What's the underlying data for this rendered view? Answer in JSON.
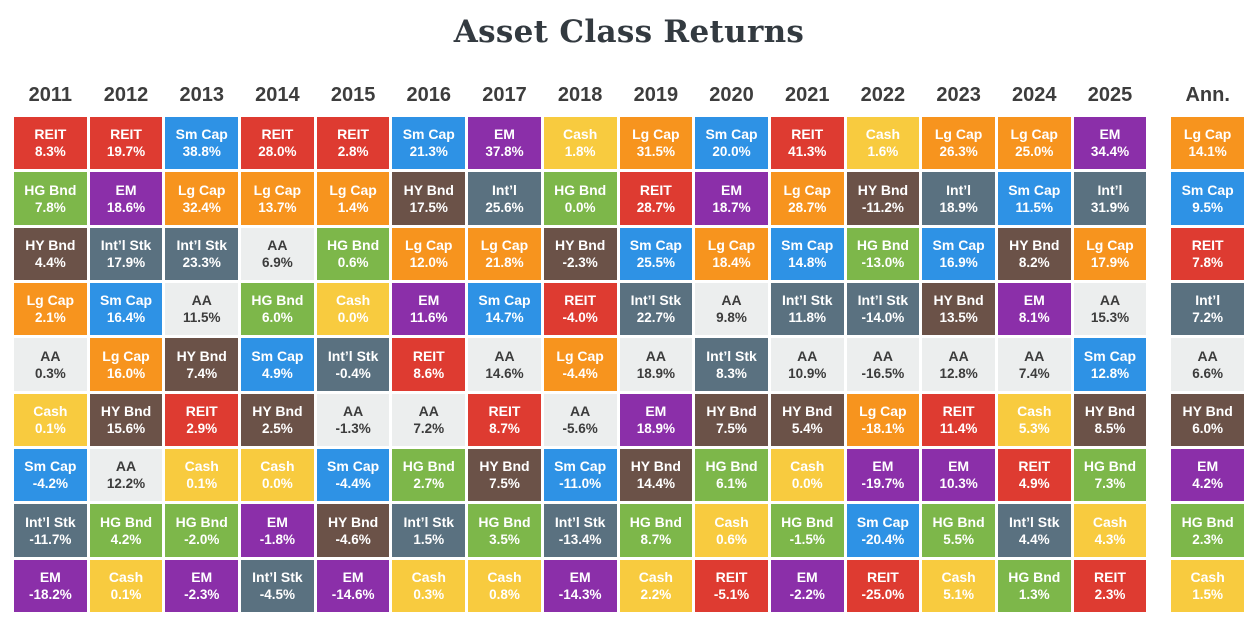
{
  "chart_data": {
    "type": "table",
    "title": "Asset Class Returns",
    "legend_position": "none",
    "asset_classes": [
      "Lg Cap",
      "Sm Cap",
      "Int’l Stk",
      "EM",
      "REIT",
      "HG Bnd",
      "HY Bnd",
      "Cash",
      "AA"
    ],
    "asset_styles": {
      "REIT": {
        "bg": "#DE3B31",
        "fg": "#FFFFFF"
      },
      "Lg Cap": {
        "bg": "#F7941E",
        "fg": "#FFFFFF"
      },
      "Sm Cap": {
        "bg": "#2E92E5",
        "fg": "#FFFFFF"
      },
      "Int’l Stk": {
        "bg": "#5A7180",
        "fg": "#FFFFFF"
      },
      "Int’l": {
        "bg": "#5A7180",
        "fg": "#FFFFFF"
      },
      "EM": {
        "bg": "#8B2FA9",
        "fg": "#FFFFFF"
      },
      "HG Bnd": {
        "bg": "#7DB74A",
        "fg": "#FFFFFF"
      },
      "HY Bnd": {
        "bg": "#6B5248",
        "fg": "#FFFFFF"
      },
      "Cash": {
        "bg": "#F8CB3F",
        "fg": "#FFFFFF"
      },
      "AA": {
        "bg": "#ECEEEE",
        "fg": "#3C3C3C"
      }
    },
    "columns": [
      {
        "label": "2011",
        "cells": [
          {
            "asset": "REIT",
            "value": "8.3%"
          },
          {
            "asset": "HG Bnd",
            "value": "7.8%"
          },
          {
            "asset": "HY Bnd",
            "value": "4.4%"
          },
          {
            "asset": "Lg Cap",
            "value": "2.1%"
          },
          {
            "asset": "AA",
            "value": "0.3%"
          },
          {
            "asset": "Cash",
            "value": "0.1%"
          },
          {
            "asset": "Sm Cap",
            "value": "-4.2%"
          },
          {
            "asset": "Int’l Stk",
            "value": "-11.7%"
          },
          {
            "asset": "EM",
            "value": "-18.2%"
          }
        ]
      },
      {
        "label": "2012",
        "cells": [
          {
            "asset": "REIT",
            "value": "19.7%"
          },
          {
            "asset": "EM",
            "value": "18.6%"
          },
          {
            "asset": "Int’l Stk",
            "value": "17.9%"
          },
          {
            "asset": "Sm Cap",
            "value": "16.4%"
          },
          {
            "asset": "Lg Cap",
            "value": "16.0%"
          },
          {
            "asset": "HY Bnd",
            "value": "15.6%"
          },
          {
            "asset": "AA",
            "value": "12.2%"
          },
          {
            "asset": "HG Bnd",
            "value": "4.2%"
          },
          {
            "asset": "Cash",
            "value": "0.1%"
          }
        ]
      },
      {
        "label": "2013",
        "cells": [
          {
            "asset": "Sm Cap",
            "value": "38.8%"
          },
          {
            "asset": "Lg Cap",
            "value": "32.4%"
          },
          {
            "asset": "Int’l Stk",
            "value": "23.3%"
          },
          {
            "asset": "AA",
            "value": "11.5%"
          },
          {
            "asset": "HY Bnd",
            "value": "7.4%"
          },
          {
            "asset": "REIT",
            "value": "2.9%"
          },
          {
            "asset": "Cash",
            "value": "0.1%"
          },
          {
            "asset": "HG Bnd",
            "value": "-2.0%"
          },
          {
            "asset": "EM",
            "value": "-2.3%"
          }
        ]
      },
      {
        "label": "2014",
        "cells": [
          {
            "asset": "REIT",
            "value": "28.0%"
          },
          {
            "asset": "Lg Cap",
            "value": "13.7%"
          },
          {
            "asset": "AA",
            "value": "6.9%"
          },
          {
            "asset": "HG Bnd",
            "value": "6.0%"
          },
          {
            "asset": "Sm Cap",
            "value": "4.9%"
          },
          {
            "asset": "HY Bnd",
            "value": "2.5%"
          },
          {
            "asset": "Cash",
            "value": "0.0%"
          },
          {
            "asset": "EM",
            "value": "-1.8%"
          },
          {
            "asset": "Int’l Stk",
            "value": "-4.5%"
          }
        ]
      },
      {
        "label": "2015",
        "cells": [
          {
            "asset": "REIT",
            "value": "2.8%"
          },
          {
            "asset": "Lg Cap",
            "value": "1.4%"
          },
          {
            "asset": "HG Bnd",
            "value": "0.6%"
          },
          {
            "asset": "Cash",
            "value": "0.0%"
          },
          {
            "asset": "Int’l Stk",
            "value": "-0.4%"
          },
          {
            "asset": "AA",
            "value": "-1.3%"
          },
          {
            "asset": "Sm Cap",
            "value": "-4.4%"
          },
          {
            "asset": "HY Bnd",
            "value": "-4.6%"
          },
          {
            "asset": "EM",
            "value": "-14.6%"
          }
        ]
      },
      {
        "label": "2016",
        "cells": [
          {
            "asset": "Sm Cap",
            "value": "21.3%"
          },
          {
            "asset": "HY Bnd",
            "value": "17.5%"
          },
          {
            "asset": "Lg Cap",
            "value": "12.0%"
          },
          {
            "asset": "EM",
            "value": "11.6%"
          },
          {
            "asset": "REIT",
            "value": "8.6%"
          },
          {
            "asset": "AA",
            "value": "7.2%"
          },
          {
            "asset": "HG Bnd",
            "value": "2.7%"
          },
          {
            "asset": "Int’l Stk",
            "value": "1.5%"
          },
          {
            "asset": "Cash",
            "value": "0.3%"
          }
        ]
      },
      {
        "label": "2017",
        "cells": [
          {
            "asset": "EM",
            "value": "37.8%"
          },
          {
            "asset": "Int’l",
            "value": "25.6%"
          },
          {
            "asset": "Lg Cap",
            "value": "21.8%"
          },
          {
            "asset": "Sm Cap",
            "value": "14.7%"
          },
          {
            "asset": "AA",
            "value": "14.6%"
          },
          {
            "asset": "REIT",
            "value": "8.7%"
          },
          {
            "asset": "HY Bnd",
            "value": "7.5%"
          },
          {
            "asset": "HG Bnd",
            "value": "3.5%"
          },
          {
            "asset": "Cash",
            "value": "0.8%"
          }
        ]
      },
      {
        "label": "2018",
        "cells": [
          {
            "asset": "Cash",
            "value": "1.8%"
          },
          {
            "asset": "HG Bnd",
            "value": "0.0%"
          },
          {
            "asset": "HY Bnd",
            "value": "-2.3%"
          },
          {
            "asset": "REIT",
            "value": "-4.0%"
          },
          {
            "asset": "Lg Cap",
            "value": "-4.4%"
          },
          {
            "asset": "AA",
            "value": "-5.6%"
          },
          {
            "asset": "Sm Cap",
            "value": "-11.0%"
          },
          {
            "asset": "Int’l Stk",
            "value": "-13.4%"
          },
          {
            "asset": "EM",
            "value": "-14.3%"
          }
        ]
      },
      {
        "label": "2019",
        "cells": [
          {
            "asset": "Lg Cap",
            "value": "31.5%"
          },
          {
            "asset": "REIT",
            "value": "28.7%"
          },
          {
            "asset": "Sm Cap",
            "value": "25.5%"
          },
          {
            "asset": "Int’l Stk",
            "value": "22.7%"
          },
          {
            "asset": "AA",
            "value": "18.9%"
          },
          {
            "asset": "EM",
            "value": "18.9%"
          },
          {
            "asset": "HY Bnd",
            "value": "14.4%"
          },
          {
            "asset": "HG Bnd",
            "value": "8.7%"
          },
          {
            "asset": "Cash",
            "value": "2.2%"
          }
        ]
      },
      {
        "label": "2020",
        "cells": [
          {
            "asset": "Sm Cap",
            "value": "20.0%"
          },
          {
            "asset": "EM",
            "value": "18.7%"
          },
          {
            "asset": "Lg Cap",
            "value": "18.4%"
          },
          {
            "asset": "AA",
            "value": "9.8%"
          },
          {
            "asset": "Int’l Stk",
            "value": "8.3%"
          },
          {
            "asset": "HY Bnd",
            "value": "7.5%"
          },
          {
            "asset": "HG Bnd",
            "value": "6.1%"
          },
          {
            "asset": "Cash",
            "value": "0.6%"
          },
          {
            "asset": "REIT",
            "value": "-5.1%"
          }
        ]
      },
      {
        "label": "2021",
        "cells": [
          {
            "asset": "REIT",
            "value": "41.3%"
          },
          {
            "asset": "Lg Cap",
            "value": "28.7%"
          },
          {
            "asset": "Sm Cap",
            "value": "14.8%"
          },
          {
            "asset": "Int’l Stk",
            "value": "11.8%"
          },
          {
            "asset": "AA",
            "value": "10.9%"
          },
          {
            "asset": "HY Bnd",
            "value": "5.4%"
          },
          {
            "asset": "Cash",
            "value": "0.0%"
          },
          {
            "asset": "HG Bnd",
            "value": "-1.5%"
          },
          {
            "asset": "EM",
            "value": "-2.2%"
          }
        ]
      },
      {
        "label": "2022",
        "cells": [
          {
            "asset": "Cash",
            "value": "1.6%"
          },
          {
            "asset": "HY Bnd",
            "value": "-11.2%"
          },
          {
            "asset": "HG Bnd",
            "value": "-13.0%"
          },
          {
            "asset": "Int’l Stk",
            "value": "-14.0%"
          },
          {
            "asset": "AA",
            "value": "-16.5%"
          },
          {
            "asset": "Lg Cap",
            "value": "-18.1%"
          },
          {
            "asset": "EM",
            "value": "-19.7%"
          },
          {
            "asset": "Sm Cap",
            "value": "-20.4%"
          },
          {
            "asset": "REIT",
            "value": "-25.0%"
          }
        ]
      },
      {
        "label": "2023",
        "cells": [
          {
            "asset": "Lg Cap",
            "value": "26.3%"
          },
          {
            "asset": "Int’l",
            "value": "18.9%"
          },
          {
            "asset": "Sm Cap",
            "value": "16.9%"
          },
          {
            "asset": "HY Bnd",
            "value": "13.5%"
          },
          {
            "asset": "AA",
            "value": "12.8%"
          },
          {
            "asset": "REIT",
            "value": "11.4%"
          },
          {
            "asset": "EM",
            "value": "10.3%"
          },
          {
            "asset": "HG Bnd",
            "value": "5.5%"
          },
          {
            "asset": "Cash",
            "value": "5.1%"
          }
        ]
      },
      {
        "label": "2024",
        "cells": [
          {
            "asset": "Lg Cap",
            "value": "25.0%"
          },
          {
            "asset": "Sm Cap",
            "value": "11.5%"
          },
          {
            "asset": "HY Bnd",
            "value": "8.2%"
          },
          {
            "asset": "EM",
            "value": "8.1%"
          },
          {
            "asset": "AA",
            "value": "7.4%"
          },
          {
            "asset": "Cash",
            "value": "5.3%"
          },
          {
            "asset": "REIT",
            "value": "4.9%"
          },
          {
            "asset": "Int’l Stk",
            "value": "4.4%"
          },
          {
            "asset": "HG Bnd",
            "value": "1.3%"
          }
        ]
      },
      {
        "label": "2025",
        "cells": [
          {
            "asset": "EM",
            "value": "34.4%"
          },
          {
            "asset": "Int’l",
            "value": "31.9%"
          },
          {
            "asset": "Lg Cap",
            "value": "17.9%"
          },
          {
            "asset": "AA",
            "value": "15.3%"
          },
          {
            "asset": "Sm Cap",
            "value": "12.8%"
          },
          {
            "asset": "HY Bnd",
            "value": "8.5%"
          },
          {
            "asset": "HG Bnd",
            "value": "7.3%"
          },
          {
            "asset": "Cash",
            "value": "4.3%"
          },
          {
            "asset": "REIT",
            "value": "2.3%"
          }
        ]
      },
      {
        "label": "Ann.",
        "annualized": true,
        "cells": [
          {
            "asset": "Lg Cap",
            "value": "14.1%"
          },
          {
            "asset": "Sm Cap",
            "value": "9.5%"
          },
          {
            "asset": "REIT",
            "value": "7.8%"
          },
          {
            "asset": "Int’l",
            "value": "7.2%"
          },
          {
            "asset": "AA",
            "value": "6.6%"
          },
          {
            "asset": "HY Bnd",
            "value": "6.0%"
          },
          {
            "asset": "EM",
            "value": "4.2%"
          },
          {
            "asset": "HG Bnd",
            "value": "2.3%"
          },
          {
            "asset": "Cash",
            "value": "1.5%"
          }
        ]
      }
    ]
  }
}
